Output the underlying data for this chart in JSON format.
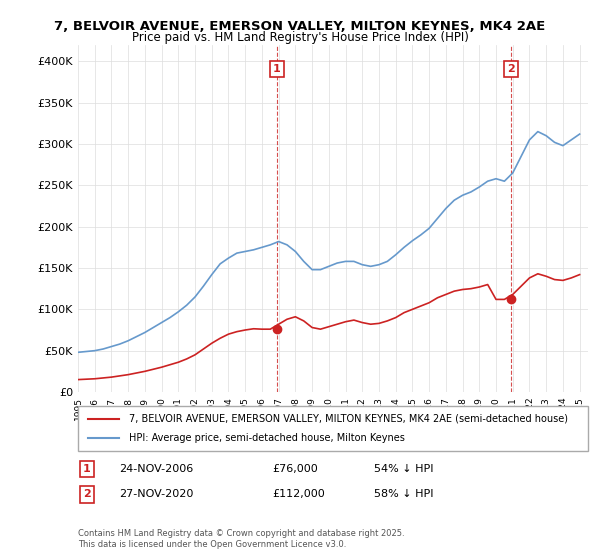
{
  "title": "7, BELVOIR AVENUE, EMERSON VALLEY, MILTON KEYNES, MK4 2AE",
  "subtitle": "Price paid vs. HM Land Registry's House Price Index (HPI)",
  "legend_line1": "7, BELVOIR AVENUE, EMERSON VALLEY, MILTON KEYNES, MK4 2AE (semi-detached house)",
  "legend_line2": "HPI: Average price, semi-detached house, Milton Keynes",
  "footer": "Contains HM Land Registry data © Crown copyright and database right 2025.\nThis data is licensed under the Open Government Licence v3.0.",
  "sale1_label": "1",
  "sale1_date": "24-NOV-2006",
  "sale1_price": "£76,000",
  "sale1_pct": "54% ↓ HPI",
  "sale1_x": 2006.9,
  "sale1_y": 76000,
  "sale2_label": "2",
  "sale2_date": "27-NOV-2020",
  "sale2_price": "£112,000",
  "sale2_pct": "58% ↓ HPI",
  "sale2_x": 2020.9,
  "sale2_y": 112000,
  "red_color": "#cc2222",
  "blue_color": "#6699cc",
  "ylim": [
    0,
    420000
  ],
  "xlim": [
    1995,
    2025.5
  ],
  "yticks": [
    0,
    50000,
    100000,
    150000,
    200000,
    250000,
    300000,
    350000,
    400000
  ],
  "ytick_labels": [
    "£0",
    "£50K",
    "£100K",
    "£150K",
    "£200K",
    "£250K",
    "£300K",
    "£350K",
    "£400K"
  ],
  "hpi_years": [
    1995,
    1995.5,
    1996,
    1996.5,
    1997,
    1997.5,
    1998,
    1998.5,
    1999,
    1999.5,
    2000,
    2000.5,
    2001,
    2001.5,
    2002,
    2002.5,
    2003,
    2003.5,
    2004,
    2004.5,
    2005,
    2005.5,
    2006,
    2006.5,
    2007,
    2007.5,
    2008,
    2008.5,
    2009,
    2009.5,
    2010,
    2010.5,
    2011,
    2011.5,
    2012,
    2012.5,
    2013,
    2013.5,
    2014,
    2014.5,
    2015,
    2015.5,
    2016,
    2016.5,
    2017,
    2017.5,
    2018,
    2018.5,
    2019,
    2019.5,
    2020,
    2020.5,
    2021,
    2021.5,
    2022,
    2022.5,
    2023,
    2023.5,
    2024,
    2024.5,
    2025
  ],
  "hpi_values": [
    48000,
    49000,
    50000,
    52000,
    55000,
    58000,
    62000,
    67000,
    72000,
    78000,
    84000,
    90000,
    97000,
    105000,
    115000,
    128000,
    142000,
    155000,
    162000,
    168000,
    170000,
    172000,
    175000,
    178000,
    182000,
    178000,
    170000,
    158000,
    148000,
    148000,
    152000,
    156000,
    158000,
    158000,
    154000,
    152000,
    154000,
    158000,
    166000,
    175000,
    183000,
    190000,
    198000,
    210000,
    222000,
    232000,
    238000,
    242000,
    248000,
    255000,
    258000,
    255000,
    265000,
    285000,
    305000,
    315000,
    310000,
    302000,
    298000,
    305000,
    312000
  ],
  "prop_years": [
    1995,
    1995.5,
    1996,
    1996.5,
    1997,
    1997.5,
    1998,
    1998.5,
    1999,
    1999.5,
    2000,
    2000.5,
    2001,
    2001.5,
    2002,
    2002.5,
    2003,
    2003.5,
    2004,
    2004.5,
    2005,
    2005.5,
    2006,
    2006.5,
    2007,
    2007.5,
    2008,
    2008.5,
    2009,
    2009.5,
    2010,
    2010.5,
    2011,
    2011.5,
    2012,
    2012.5,
    2013,
    2013.5,
    2014,
    2014.5,
    2015,
    2015.5,
    2016,
    2016.5,
    2017,
    2017.5,
    2018,
    2018.5,
    2019,
    2019.5,
    2020,
    2020.5,
    2021,
    2021.5,
    2022,
    2022.5,
    2023,
    2023.5,
    2024,
    2024.5,
    2025
  ],
  "prop_values": [
    15000,
    15500,
    16000,
    17000,
    18000,
    19500,
    21000,
    23000,
    25000,
    27500,
    30000,
    33000,
    36000,
    40000,
    45000,
    52000,
    59000,
    65000,
    70000,
    73000,
    75000,
    76500,
    76000,
    76000,
    82000,
    88000,
    91000,
    86000,
    78000,
    76000,
    79000,
    82000,
    85000,
    87000,
    84000,
    82000,
    83000,
    86000,
    90000,
    96000,
    100000,
    104000,
    108000,
    114000,
    118000,
    122000,
    124000,
    125000,
    127000,
    130000,
    112000,
    112000,
    118000,
    128000,
    138000,
    143000,
    140000,
    136000,
    135000,
    138000,
    142000
  ]
}
